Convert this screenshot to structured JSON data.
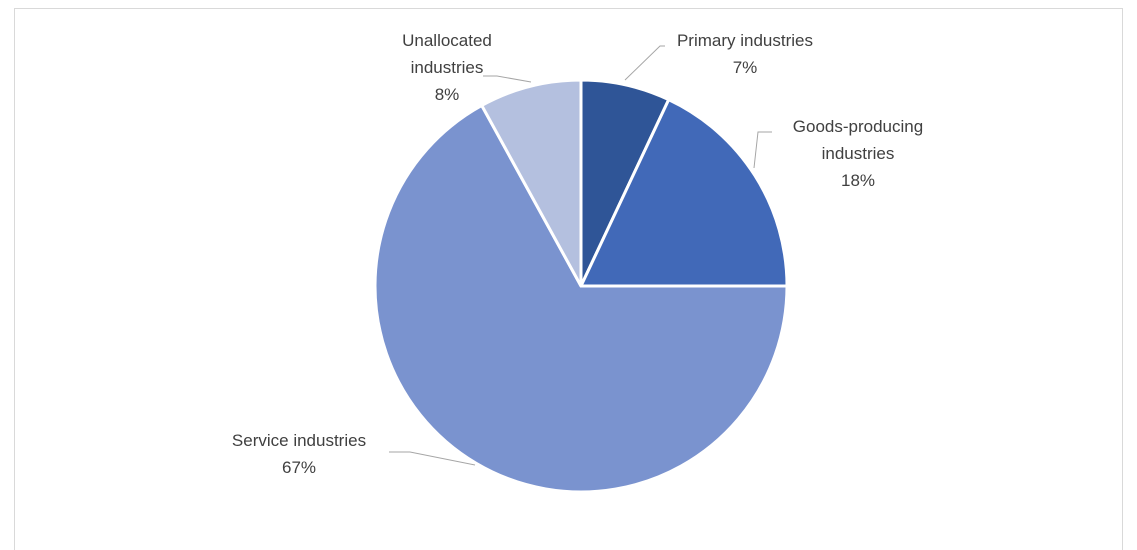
{
  "chart_data": {
    "type": "pie",
    "title": "",
    "legend": "none",
    "slices": [
      {
        "name": "Primary industries",
        "value": 7,
        "label": "7%",
        "color": "#2f5597"
      },
      {
        "name": "Goods-producing industries",
        "value": 18,
        "label": "18%",
        "color": "#4169b8"
      },
      {
        "name": "Service industries",
        "value": 67,
        "label": "67%",
        "color": "#7a93cf"
      },
      {
        "name": "Unallocated industries",
        "value": 8,
        "label": "8%",
        "color": "#b4c0df"
      }
    ],
    "label_lines": {
      "Primary industries": [
        "Primary industries",
        "7%"
      ],
      "Goods-producing industries": [
        "Goods-producing",
        "industries",
        "18%"
      ],
      "Service industries": [
        "Service industries",
        "67%"
      ],
      "Unallocated industries": [
        "Unallocated",
        "industries",
        "8%"
      ]
    }
  }
}
